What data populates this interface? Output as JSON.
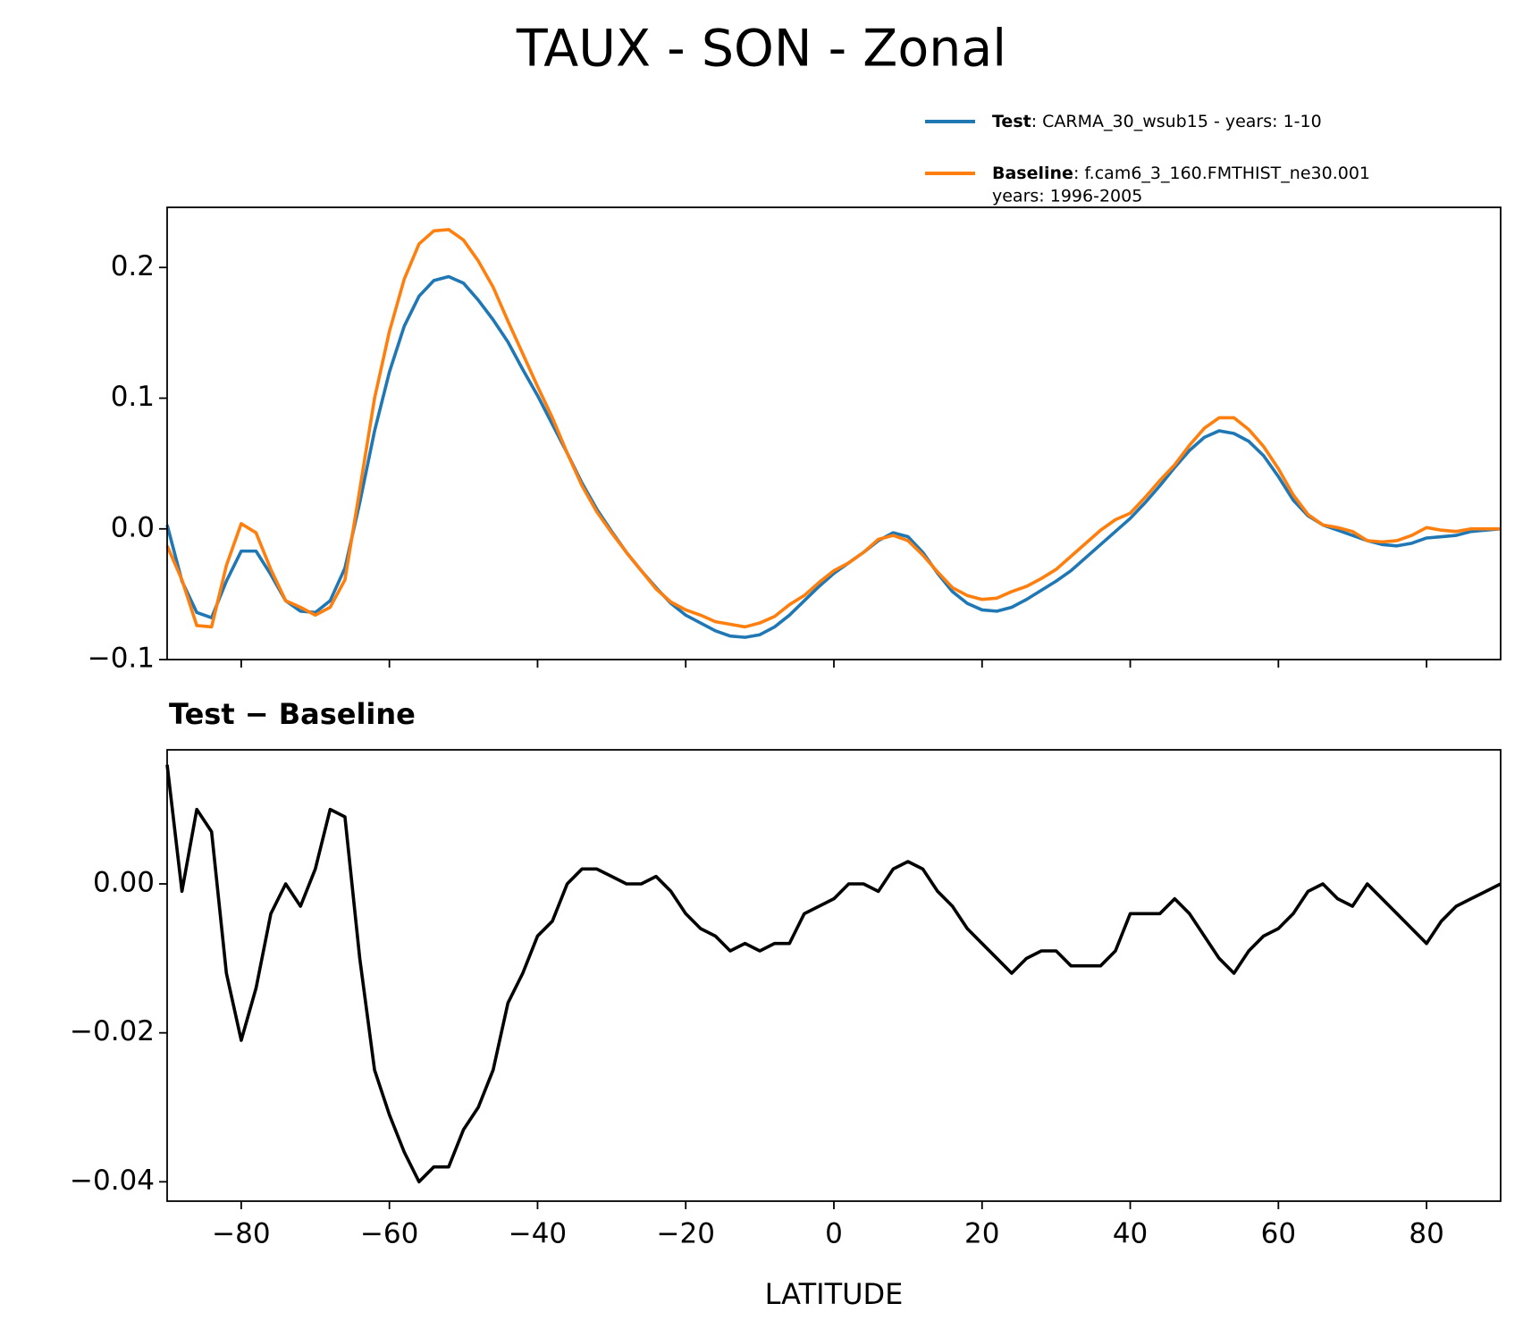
{
  "title": "TAUX - SON - Zonal",
  "chart_data": [
    {
      "type": "line",
      "x": [
        -90,
        -88,
        -86,
        -84,
        -82,
        -80,
        -78,
        -76,
        -74,
        -72,
        -70,
        -68,
        -66,
        -64,
        -62,
        -60,
        -58,
        -56,
        -54,
        -52,
        -50,
        -48,
        -46,
        -44,
        -42,
        -40,
        -38,
        -36,
        -34,
        -32,
        -30,
        -28,
        -26,
        -24,
        -22,
        -20,
        -18,
        -16,
        -14,
        -12,
        -10,
        -8,
        -6,
        -4,
        -2,
        0,
        2,
        4,
        6,
        8,
        10,
        12,
        14,
        16,
        18,
        20,
        22,
        24,
        26,
        28,
        30,
        32,
        34,
        36,
        38,
        40,
        42,
        44,
        46,
        48,
        50,
        52,
        54,
        56,
        58,
        60,
        62,
        64,
        66,
        68,
        70,
        72,
        74,
        76,
        78,
        80,
        82,
        84,
        86,
        88,
        90
      ],
      "series": [
        {
          "name": "Test",
          "description": [
            ": CARMA_30_wsub15 - years: 1-10"
          ],
          "color": "#1f77b4",
          "values": [
            0.003,
            -0.04,
            -0.064,
            -0.068,
            -0.04,
            -0.017,
            -0.017,
            -0.035,
            -0.055,
            -0.063,
            -0.064,
            -0.055,
            -0.03,
            0.02,
            0.075,
            0.12,
            0.155,
            0.178,
            0.19,
            0.193,
            0.188,
            0.175,
            0.16,
            0.143,
            0.122,
            0.102,
            0.08,
            0.058,
            0.035,
            0.015,
            -0.002,
            -0.018,
            -0.032,
            -0.045,
            -0.057,
            -0.066,
            -0.072,
            -0.078,
            -0.082,
            -0.083,
            -0.081,
            -0.075,
            -0.066,
            -0.055,
            -0.044,
            -0.034,
            -0.026,
            -0.018,
            -0.009,
            -0.003,
            -0.006,
            -0.018,
            -0.034,
            -0.048,
            -0.057,
            -0.062,
            -0.063,
            -0.06,
            -0.054,
            -0.047,
            -0.04,
            -0.032,
            -0.022,
            -0.012,
            -0.002,
            0.008,
            0.02,
            0.033,
            0.047,
            0.06,
            0.07,
            0.075,
            0.073,
            0.067,
            0.056,
            0.04,
            0.022,
            0.01,
            0.003,
            -0.001,
            -0.005,
            -0.009,
            -0.012,
            -0.013,
            -0.011,
            -0.007,
            -0.006,
            -0.005,
            -0.002,
            -0.001,
            0.0
          ]
        },
        {
          "name": "Baseline",
          "description": [
            ": f.cam6_3_160.FMTHIST_ne30.001",
            "years: 1996-2005"
          ],
          "color": "#ff7f0e",
          "values": [
            -0.013,
            -0.039,
            -0.074,
            -0.075,
            -0.028,
            0.004,
            -0.003,
            -0.031,
            -0.055,
            -0.06,
            -0.066,
            -0.06,
            -0.039,
            0.03,
            0.1,
            0.151,
            0.191,
            0.218,
            0.228,
            0.229,
            0.221,
            0.205,
            0.185,
            0.159,
            0.134,
            0.109,
            0.085,
            0.058,
            0.033,
            0.013,
            -0.003,
            -0.018,
            -0.032,
            -0.046,
            -0.056,
            -0.062,
            -0.066,
            -0.071,
            -0.073,
            -0.075,
            -0.072,
            -0.067,
            -0.058,
            -0.051,
            -0.041,
            -0.032,
            -0.026,
            -0.018,
            -0.008,
            -0.005,
            -0.009,
            -0.02,
            -0.033,
            -0.045,
            -0.051,
            -0.054,
            -0.053,
            -0.048,
            -0.044,
            -0.038,
            -0.031,
            -0.021,
            -0.011,
            -0.001,
            0.007,
            0.012,
            0.024,
            0.037,
            0.049,
            0.064,
            0.077,
            0.085,
            0.085,
            0.076,
            0.063,
            0.046,
            0.026,
            0.011,
            0.003,
            0.001,
            -0.002,
            -0.009,
            -0.01,
            -0.009,
            -0.005,
            0.001,
            -0.001,
            -0.002,
            0.0,
            0.0,
            0.0
          ]
        }
      ],
      "xlim": [
        -90,
        90
      ],
      "xticks": [
        {
          "value": -80,
          "label": "−80"
        },
        {
          "value": -60,
          "label": "−60"
        },
        {
          "value": -40,
          "label": "−40"
        },
        {
          "value": -20,
          "label": "−20"
        },
        0,
        20,
        40,
        60,
        80
      ],
      "ylim": [
        -0.1,
        0.246
      ],
      "yticks": [
        {
          "value": -0.1,
          "label": "−0.1"
        },
        {
          "value": 0,
          "label": "0.0"
        },
        0.1,
        0.2
      ],
      "legend": "upper right"
    },
    {
      "type": "line",
      "title": "Test − Baseline",
      "xlabel": "LATITUDE",
      "x": [
        -90,
        -88,
        -86,
        -84,
        -82,
        -80,
        -78,
        -76,
        -74,
        -72,
        -70,
        -68,
        -66,
        -64,
        -62,
        -60,
        -58,
        -56,
        -54,
        -52,
        -50,
        -48,
        -46,
        -44,
        -42,
        -40,
        -38,
        -36,
        -34,
        -32,
        -30,
        -28,
        -26,
        -24,
        -22,
        -20,
        -18,
        -16,
        -14,
        -12,
        -10,
        -8,
        -6,
        -4,
        -2,
        0,
        2,
        4,
        6,
        8,
        10,
        12,
        14,
        16,
        18,
        20,
        22,
        24,
        26,
        28,
        30,
        32,
        34,
        36,
        38,
        40,
        42,
        44,
        46,
        48,
        50,
        52,
        54,
        56,
        58,
        60,
        62,
        64,
        66,
        68,
        70,
        72,
        74,
        76,
        78,
        80,
        82,
        84,
        86,
        88,
        90
      ],
      "series": [
        {
          "color": "#000000",
          "values": [
            0.016,
            -0.001,
            0.01,
            0.007,
            -0.012,
            -0.021,
            -0.014,
            -0.004,
            0.0,
            -0.003,
            0.002,
            0.01,
            0.009,
            -0.01,
            -0.025,
            -0.031,
            -0.036,
            -0.04,
            -0.038,
            -0.038,
            -0.033,
            -0.03,
            -0.025,
            -0.016,
            -0.012,
            -0.007,
            -0.005,
            0.0,
            0.002,
            0.002,
            0.001,
            0.0,
            0.0,
            0.001,
            -0.001,
            -0.004,
            -0.006,
            -0.007,
            -0.009,
            -0.008,
            -0.009,
            -0.008,
            -0.008,
            -0.004,
            -0.003,
            -0.002,
            0.0,
            0.0,
            -0.001,
            0.002,
            0.003,
            0.002,
            -0.001,
            -0.003,
            -0.006,
            -0.008,
            -0.01,
            -0.012,
            -0.01,
            -0.009,
            -0.009,
            -0.011,
            -0.011,
            -0.011,
            -0.009,
            -0.004,
            -0.004,
            -0.004,
            -0.002,
            -0.004,
            -0.007,
            -0.01,
            -0.012,
            -0.009,
            -0.007,
            -0.006,
            -0.004,
            -0.001,
            0.0,
            -0.002,
            -0.003,
            0.0,
            -0.002,
            -0.004,
            -0.006,
            -0.008,
            -0.005,
            -0.003,
            -0.002,
            -0.001,
            0.0
          ]
        }
      ],
      "xlim": [
        -90,
        90
      ],
      "xticks": [
        {
          "value": -80,
          "label": "−80"
        },
        {
          "value": -60,
          "label": "−60"
        },
        {
          "value": -40,
          "label": "−40"
        },
        {
          "value": -20,
          "label": "−20"
        },
        0,
        20,
        40,
        60,
        80
      ],
      "ylim": [
        -0.0426,
        0.018
      ],
      "yticks": [
        {
          "value": -0.04,
          "label": "−0.04"
        },
        {
          "value": -0.02,
          "label": "−0.02"
        },
        {
          "value": 0,
          "label": "0.00"
        }
      ]
    }
  ]
}
